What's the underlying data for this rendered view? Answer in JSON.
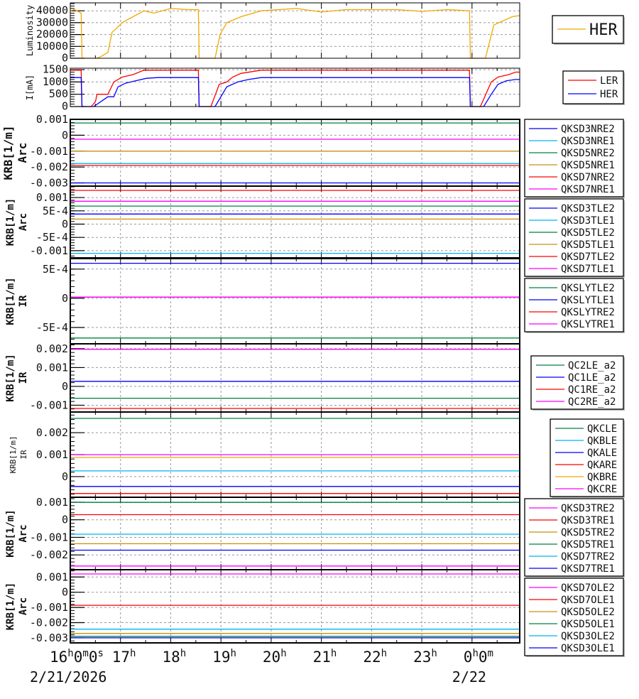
{
  "x_axis": {
    "range": [
      "2026-02-21T16:00",
      "2026-02-22T00:57"
    ],
    "tick_labels": [
      {
        "t": "2026-02-21T16:00",
        "parts": [
          [
            "16",
            "h"
          ],
          [
            "0",
            "m"
          ],
          [
            "0",
            "s"
          ]
        ]
      },
      {
        "t": "2026-02-21T17:00",
        "parts": [
          [
            "17",
            "h"
          ]
        ]
      },
      {
        "t": "2026-02-21T18:00",
        "parts": [
          [
            "18",
            "h"
          ]
        ]
      },
      {
        "t": "2026-02-21T19:00",
        "parts": [
          [
            "19",
            "h"
          ]
        ]
      },
      {
        "t": "2026-02-21T20:00",
        "parts": [
          [
            "20",
            "h"
          ]
        ]
      },
      {
        "t": "2026-02-21T21:00",
        "parts": [
          [
            "21",
            "h"
          ]
        ]
      },
      {
        "t": "2026-02-21T22:00",
        "parts": [
          [
            "22",
            "h"
          ]
        ]
      },
      {
        "t": "2026-02-21T23:00",
        "parts": [
          [
            "23",
            "h"
          ]
        ]
      },
      {
        "t": "2026-02-22T00:00",
        "parts": [
          [
            "0",
            "h"
          ],
          [
            "0",
            "m"
          ]
        ]
      }
    ],
    "date_labels": [
      {
        "t": "2026-02-21T16:00",
        "label": "2/21/2026"
      },
      {
        "t": "2026-02-22T00:00",
        "label": "2/22"
      }
    ],
    "grid": true
  },
  "chart_data": [
    {
      "type": "line",
      "ylabel": [
        "Luminosity"
      ],
      "ylim": [
        0,
        46700
      ],
      "grid": true,
      "legend": "right",
      "legend_large": true,
      "yticks": [
        {
          "v": 0,
          "label": "0"
        },
        {
          "v": 10000,
          "label": "10000"
        },
        {
          "v": 20000,
          "label": "20000"
        },
        {
          "v": 30000,
          "label": "30000"
        },
        {
          "v": 40000,
          "label": "40000"
        }
      ],
      "series": [
        {
          "name": "HER",
          "color": "#f0a800",
          "points": [
            [
              "2026-02-21T16:00",
              40000
            ],
            [
              "2026-02-21T16:05",
              41000
            ],
            [
              "2026-02-21T16:13",
              38000
            ],
            [
              "2026-02-21T16:14",
              0
            ],
            [
              "2026-02-21T16:32",
              0
            ],
            [
              "2026-02-21T16:38",
              2000
            ],
            [
              "2026-02-21T16:45",
              5000
            ],
            [
              "2026-02-21T16:50",
              22000
            ],
            [
              "2026-02-21T16:55",
              25000
            ],
            [
              "2026-02-21T17:02",
              30000
            ],
            [
              "2026-02-21T17:15",
              35000
            ],
            [
              "2026-02-21T17:28",
              40000
            ],
            [
              "2026-02-21T17:40",
              38000
            ],
            [
              "2026-02-21T18:00",
              42000
            ],
            [
              "2026-02-21T18:20",
              41000
            ],
            [
              "2026-02-21T18:33",
              41000
            ],
            [
              "2026-02-21T18:34",
              0
            ],
            [
              "2026-02-21T18:53",
              0
            ],
            [
              "2026-02-21T18:59",
              20000
            ],
            [
              "2026-02-21T19:07",
              30000
            ],
            [
              "2026-02-21T19:24",
              35000
            ],
            [
              "2026-02-21T19:48",
              40000
            ],
            [
              "2026-02-21T20:30",
              42000
            ],
            [
              "2026-02-21T21:00",
              39000
            ],
            [
              "2026-02-21T21:30",
              41000
            ],
            [
              "2026-02-21T22:30",
              41000
            ],
            [
              "2026-02-21T23:00",
              39500
            ],
            [
              "2026-02-21T23:30",
              41000
            ],
            [
              "2026-02-21T23:57",
              40000
            ],
            [
              "2026-02-21T23:58",
              0
            ],
            [
              "2026-02-22T00:16",
              0
            ],
            [
              "2026-02-22T00:26",
              28000
            ],
            [
              "2026-02-22T00:48",
              35000
            ],
            [
              "2026-02-22T00:57",
              36000
            ]
          ]
        }
      ]
    },
    {
      "type": "line",
      "ylabel": [
        "I[mA]"
      ],
      "ylim": [
        0,
        1560
      ],
      "grid": true,
      "legend": "right",
      "yticks": [
        {
          "v": 0,
          "label": "0"
        },
        {
          "v": 500,
          "label": "500"
        },
        {
          "v": 1000,
          "label": "1000"
        },
        {
          "v": 1500,
          "label": "1500"
        }
      ],
      "series": [
        {
          "name": "LER",
          "color": "#ff0000",
          "points": [
            [
              "2026-02-21T16:00",
              1480
            ],
            [
              "2026-02-21T16:13",
              1480
            ],
            [
              "2026-02-21T16:14",
              0
            ],
            [
              "2026-02-21T16:25",
              0
            ],
            [
              "2026-02-21T16:30",
              200
            ],
            [
              "2026-02-21T16:32",
              500
            ],
            [
              "2026-02-21T16:45",
              500
            ],
            [
              "2026-02-21T16:52",
              1000
            ],
            [
              "2026-02-21T17:02",
              1200
            ],
            [
              "2026-02-21T17:15",
              1300
            ],
            [
              "2026-02-21T17:28",
              1480
            ],
            [
              "2026-02-21T18:33",
              1480
            ],
            [
              "2026-02-21T18:34",
              0
            ],
            [
              "2026-02-21T18:48",
              0
            ],
            [
              "2026-02-21T18:58",
              900
            ],
            [
              "2026-02-21T19:07",
              1000
            ],
            [
              "2026-02-21T19:14",
              1200
            ],
            [
              "2026-02-21T19:24",
              1350
            ],
            [
              "2026-02-21T19:48",
              1480
            ],
            [
              "2026-02-21T23:57",
              1480
            ],
            [
              "2026-02-21T23:58",
              0
            ],
            [
              "2026-02-22T00:10",
              0
            ],
            [
              "2026-02-22T00:23",
              1000
            ],
            [
              "2026-02-22T00:31",
              1200
            ],
            [
              "2026-02-22T00:44",
              1300
            ],
            [
              "2026-02-22T00:52",
              1400
            ],
            [
              "2026-02-22T00:57",
              1400
            ]
          ]
        },
        {
          "name": "HER",
          "color": "#0000ff",
          "points": [
            [
              "2026-02-21T16:00",
              1180
            ],
            [
              "2026-02-21T16:13",
              1180
            ],
            [
              "2026-02-21T16:14",
              0
            ],
            [
              "2026-02-21T16:28",
              0
            ],
            [
              "2026-02-21T16:45",
              400
            ],
            [
              "2026-02-21T16:52",
              400
            ],
            [
              "2026-02-21T16:57",
              800
            ],
            [
              "2026-02-21T17:06",
              950
            ],
            [
              "2026-02-21T17:18",
              1050
            ],
            [
              "2026-02-21T17:31",
              1150
            ],
            [
              "2026-02-21T17:45",
              1180
            ],
            [
              "2026-02-21T18:33",
              1180
            ],
            [
              "2026-02-21T18:34",
              0
            ],
            [
              "2026-02-21T18:53",
              0
            ],
            [
              "2026-02-21T19:07",
              800
            ],
            [
              "2026-02-21T19:20",
              1000
            ],
            [
              "2026-02-21T19:33",
              1100
            ],
            [
              "2026-02-21T19:48",
              1180
            ],
            [
              "2026-02-21T23:57",
              1180
            ],
            [
              "2026-02-21T23:58",
              0
            ],
            [
              "2026-02-22T00:14",
              0
            ],
            [
              "2026-02-22T00:23",
              500
            ],
            [
              "2026-02-22T00:31",
              900
            ],
            [
              "2026-02-22T00:41",
              1050
            ],
            [
              "2026-02-22T00:52",
              1100
            ],
            [
              "2026-02-22T00:57",
              1100
            ]
          ]
        }
      ]
    },
    {
      "type": "line",
      "ylabel": [
        "KRB[1/m]",
        "Arc"
      ],
      "ylim": [
        -0.0032,
        0.001
      ],
      "grid": true,
      "legend": "right",
      "yticks": [
        {
          "v": 0.001,
          "label": "0.001"
        },
        {
          "v": 0,
          "label": "0"
        },
        {
          "v": -0.001,
          "label": "-0.001"
        },
        {
          "v": -0.002,
          "label": "-0.002"
        },
        {
          "v": -0.003,
          "label": "-0.003"
        }
      ],
      "series": [
        {
          "name": "QKSD3NRE2",
          "color": "#0000ff",
          "value": -0.003
        },
        {
          "name": "QKSD3NRE1",
          "color": "#00b4f0",
          "value": -0.00178
        },
        {
          "name": "QKSD5NRE2",
          "color": "#008040",
          "value": 0.00077
        },
        {
          "name": "QKSD5NRE1",
          "color": "#c89010",
          "value": -0.001
        },
        {
          "name": "QKSD7NRE2",
          "color": "#ff0000",
          "value": -0.0019
        },
        {
          "name": "QKSD7NRE1",
          "color": "#ff00ff",
          "value": -0.00025
        }
      ]
    },
    {
      "type": "line",
      "ylabel": [
        "KRB[1/m]",
        "Arc"
      ],
      "ylim": [
        -0.00127,
        0.00143
      ],
      "grid": true,
      "legend": "right",
      "yticks": [
        {
          "v": 0.001,
          "label": "0.001"
        },
        {
          "v": 0.0005,
          "label": "5E-4"
        },
        {
          "v": 0,
          "label": "0"
        },
        {
          "v": -0.0005,
          "label": "-5E-4"
        },
        {
          "v": -0.001,
          "label": "-0.001"
        }
      ],
      "series": [
        {
          "name": "QKSD3TLE2",
          "color": "#0000ff",
          "value": 0.00038
        },
        {
          "name": "QKSD3TLE1",
          "color": "#00b4f0",
          "value": -0.0011
        },
        {
          "name": "QKSD5TLE2",
          "color": "#008040",
          "value": 0.00068
        },
        {
          "name": "QKSD5TLE1",
          "color": "#c89010",
          "value": 0.00019
        },
        {
          "name": "QKSD7TLE2",
          "color": "#ff0000",
          "value": 0.00127
        },
        {
          "name": "QKSD7TLE1",
          "color": "#ff00ff",
          "value": 0.00086
        }
      ]
    },
    {
      "type": "line",
      "ylabel": [
        "KRB[1/m]",
        "IR"
      ],
      "ylim": [
        -0.00078,
        0.00068
      ],
      "grid": true,
      "legend": "right",
      "yticks": [
        {
          "v": 0.0005,
          "label": "5E-4"
        },
        {
          "v": 0,
          "label": "0"
        },
        {
          "v": -0.0005,
          "label": "-5E-4"
        }
      ],
      "series": [
        {
          "name": "QKSLYTLE2",
          "color": "#008040",
          "value": -0.00068
        },
        {
          "name": "QKSLYTLE1",
          "color": "#0000ff",
          "value": 0.0006
        },
        {
          "name": "QKSLYTRE2",
          "color": "#ff0000",
          "value": 2e-05
        },
        {
          "name": "QKSLYTRE1",
          "color": "#ff00ff",
          "value": 2e-05
        }
      ]
    },
    {
      "type": "line",
      "ylabel": [
        "KRB[1/m]",
        "IR"
      ],
      "ylim": [
        -0.00136,
        0.00226
      ],
      "grid": true,
      "legend": "right",
      "yticks": [
        {
          "v": 0.002,
          "label": "0.002"
        },
        {
          "v": 0.001,
          "label": "0.001"
        },
        {
          "v": 0,
          "label": "0"
        },
        {
          "v": -0.001,
          "label": "-0.001"
        }
      ],
      "series": [
        {
          "name": "QC2LE_a2",
          "color": "#008040",
          "value": -0.00063
        },
        {
          "name": "QC1LE_a2",
          "color": "#0000ff",
          "value": 0.00027
        },
        {
          "name": "QC1RE_a2",
          "color": "#ff0000",
          "value": -0.00117
        },
        {
          "name": "QC2RE_a2",
          "color": "#ff00ff",
          "value": 0.00197
        }
      ]
    },
    {
      "type": "line",
      "ylabel": [
        "KRB[1/m]",
        "IR"
      ],
      "ylabel_small": true,
      "ylim": [
        -0.00094,
        0.00294
      ],
      "grid": true,
      "legend": "right",
      "yticks": [
        {
          "v": 0.002,
          "label": "0.002"
        },
        {
          "v": 0.001,
          "label": "0.001"
        },
        {
          "v": 0,
          "label": "0"
        }
      ],
      "series": [
        {
          "name": "QKCLE",
          "color": "#008040",
          "value": 0.00265
        },
        {
          "name": "QKBLE",
          "color": "#00b4f0",
          "value": 0.00026
        },
        {
          "name": "QKALE",
          "color": "#0000ff",
          "value": -0.00045
        },
        {
          "name": "QKARE",
          "color": "#ff0000",
          "value": -0.00077
        },
        {
          "name": "QKBRE",
          "color": "#f0a800",
          "value": 0.00087
        },
        {
          "name": "QKCRE",
          "color": "#ff00ff",
          "value": 0.001
        }
      ]
    },
    {
      "type": "line",
      "ylabel": [
        "KRB[1/m]",
        "Arc"
      ],
      "ylim": [
        -0.00284,
        0.00128
      ],
      "grid": true,
      "legend": "right",
      "yticks": [
        {
          "v": 0.001,
          "label": "0.001"
        },
        {
          "v": 0,
          "label": "0"
        },
        {
          "v": -0.001,
          "label": "-0.001"
        },
        {
          "v": -0.002,
          "label": "-0.002"
        }
      ],
      "series": [
        {
          "name": "QKSD3TRE2",
          "color": "#ff00ff",
          "value": -0.00263
        },
        {
          "name": "QKSD3TRE1",
          "color": "#ff0000",
          "value": 0.00029
        },
        {
          "name": "QKSD5TRE2",
          "color": "#c89010",
          "value": -0.00136
        },
        {
          "name": "QKSD5TRE1",
          "color": "#008040",
          "value": 0.00099
        },
        {
          "name": "QKSD7TRE2",
          "color": "#00b4f0",
          "value": -0.00082
        },
        {
          "name": "QKSD7TRE1",
          "color": "#0000ff",
          "value": -0.00173
        }
      ]
    },
    {
      "type": "line",
      "ylabel": [
        "KRB[1/m]",
        "Arc"
      ],
      "ylim": [
        -0.00333,
        0.00148
      ],
      "grid": true,
      "legend": "right",
      "yticks": [
        {
          "v": 0.001,
          "label": "0.001"
        },
        {
          "v": 0,
          "label": "0"
        },
        {
          "v": -0.001,
          "label": "-0.001"
        },
        {
          "v": -0.002,
          "label": "-0.002"
        },
        {
          "v": -0.003,
          "label": "-0.003"
        }
      ],
      "series": [
        {
          "name": "QKSD7OLE2",
          "color": "#ff00ff",
          "value": 0.0012
        },
        {
          "name": "QKSD7OLE1",
          "color": "#ff0000",
          "value": -0.00086
        },
        {
          "name": "QKSD5OLE2",
          "color": "#c89010",
          "value": -0.00271
        },
        {
          "name": "QKSD5OLE1",
          "color": "#008040",
          "value": -0.0029
        },
        {
          "name": "QKSD3OLE2",
          "color": "#00b4f0",
          "value": -0.00243
        },
        {
          "name": "QKSD3OLE1",
          "color": "#0000ff",
          "value": -0.003
        }
      ]
    }
  ]
}
